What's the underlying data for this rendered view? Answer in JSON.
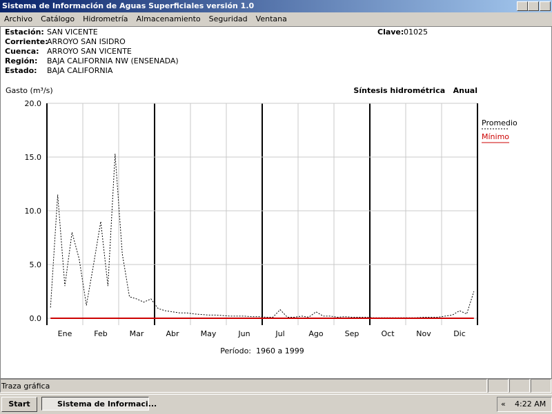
{
  "window": {
    "title": "Sistema de Información de Aguas Superficiales  versión 1.0"
  },
  "menu": [
    "Archivo",
    "Catálogo",
    "Hidrometría",
    "Almacenamiento",
    "Seguridad",
    "Ventana"
  ],
  "station": {
    "fields": [
      {
        "label": "Estación:",
        "value": "SAN VICENTE"
      },
      {
        "label": "Corriente:",
        "value": "ARROYO SAN ISIDRO"
      },
      {
        "label": "Cuenca:",
        "value": "ARROYO SAN VICENTE"
      },
      {
        "label": "Región:",
        "value": "BAJA CALIFORNIA NW (ENSENADA)"
      },
      {
        "label": "Estado:",
        "value": "BAJA CALIFORNIA"
      }
    ],
    "key_label": "Clave:",
    "key_value": "01025"
  },
  "chart_data": {
    "type": "line",
    "title": "Síntesis hidrométrica   Anual",
    "y_label": "Gasto (m³/s)",
    "period": "Período:  1960 a 1999",
    "categories": [
      null,
      null,
      "Ene",
      null,
      null,
      null,
      null,
      "Feb",
      null,
      null,
      null,
      null,
      "Mar",
      null,
      null,
      null,
      null,
      "Abr",
      null,
      null,
      null,
      null,
      "May",
      null,
      null,
      null,
      null,
      "Jun",
      null,
      null,
      null,
      null,
      "Jul",
      null,
      null,
      null,
      null,
      "Ago",
      null,
      null,
      null,
      null,
      "Sep",
      null,
      null,
      null,
      null,
      "Oct",
      null,
      null,
      null,
      null,
      "Nov",
      null,
      null,
      null,
      null,
      "Dic",
      null,
      null
    ],
    "series": [
      {
        "name": "Promedio",
        "color": "#000000",
        "dash": true,
        "values": [
          1.0,
          11.5,
          3.0,
          8.0,
          5.5,
          1.2,
          5.0,
          9.0,
          3.0,
          15.3,
          6.0,
          2.0,
          1.8,
          1.5,
          1.8,
          0.9,
          0.7,
          0.6,
          0.5,
          0.5,
          0.4,
          0.35,
          0.3,
          0.3,
          0.25,
          0.2,
          0.2,
          0.2,
          0.15,
          0.15,
          0.1,
          0.1,
          0.8,
          0.1,
          0.1,
          0.2,
          0.1,
          0.6,
          0.2,
          0.2,
          0.1,
          0.15,
          0.1,
          0.1,
          0.1,
          0.05,
          0.05,
          0.05,
          0.05,
          0.05,
          0.05,
          0.05,
          0.1,
          0.1,
          0.1,
          0.2,
          0.3,
          0.7,
          0.4,
          2.5
        ]
      },
      {
        "name": "Mínimo",
        "color": "#cc0000",
        "dash": false,
        "values": [
          0,
          0,
          0,
          0,
          0,
          0,
          0,
          0,
          0,
          0,
          0,
          0,
          0,
          0,
          0,
          0,
          0,
          0,
          0,
          0,
          0,
          0,
          0,
          0,
          0,
          0,
          0,
          0,
          0,
          0,
          0,
          0,
          0,
          0,
          0,
          0,
          0,
          0,
          0,
          0,
          0,
          0,
          0,
          0,
          0,
          0,
          0,
          0,
          0,
          0,
          0,
          0,
          0,
          0,
          0,
          0,
          0,
          0,
          0,
          0
        ]
      }
    ],
    "ylim": [
      0,
      20
    ],
    "yticks": [
      {
        "value": 0,
        "label": "0.0"
      },
      {
        "value": 5,
        "label": "5.0"
      },
      {
        "value": 10,
        "label": "10.0"
      },
      {
        "value": 15,
        "label": "15.0"
      },
      {
        "value": 20,
        "label": "20.0"
      }
    ],
    "grid": true
  },
  "status_bar": {
    "text": "Traza gráfica"
  },
  "taskbar": {
    "start": "Start",
    "task": "Sistema de Informaci...",
    "chevron": "«",
    "clock": "4:22 AM"
  }
}
